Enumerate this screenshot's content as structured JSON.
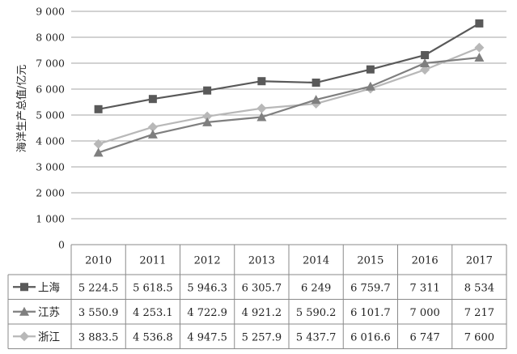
{
  "chart_data": {
    "type": "line",
    "title": "",
    "xlabel": "",
    "ylabel": "海洋生产总值/亿元",
    "ylim": [
      0,
      9000
    ],
    "y_ticks": [
      0,
      1000,
      2000,
      3000,
      4000,
      5000,
      6000,
      7000,
      8000,
      9000
    ],
    "y_tick_labels": [
      "0",
      "1 000",
      "2 000",
      "3 000",
      "4 000",
      "5 000",
      "6 000",
      "7 000",
      "8 000",
      "9 000"
    ],
    "grid": "horizontal",
    "legend": "table-left",
    "categories": [
      "2010",
      "2011",
      "2012",
      "2013",
      "2014",
      "2015",
      "2016",
      "2017"
    ],
    "series": [
      {
        "name": "上海",
        "marker": "square",
        "color": "#595959",
        "values": [
          5224.5,
          5618.5,
          5946.3,
          6305.7,
          6249,
          6759.7,
          7311,
          8534
        ],
        "value_labels": [
          "5 224.5",
          "5 618.5",
          "5 946.3",
          "6 305.7",
          "6 249",
          "6 759.7",
          "7 311",
          "8 534"
        ]
      },
      {
        "name": "江苏",
        "marker": "triangle",
        "color": "#7f7f7f",
        "values": [
          3550.9,
          4253.1,
          4722.9,
          4921.2,
          5590.2,
          6101.7,
          7000,
          7217
        ],
        "value_labels": [
          "3 550.9",
          "4 253.1",
          "4 722.9",
          "4 921.2",
          "5 590.2",
          "6 101.7",
          "7 000",
          "7 217"
        ]
      },
      {
        "name": "浙江",
        "marker": "diamond",
        "color": "#b8b8b8",
        "values": [
          3883.5,
          4536.8,
          4947.5,
          5257.9,
          5437.7,
          6016.6,
          6747,
          7600
        ],
        "value_labels": [
          "3 883.5",
          "4 536.8",
          "4 947.5",
          "5 257.9",
          "5 437.7",
          "6 016.6",
          "6 747",
          "7 600"
        ]
      }
    ]
  }
}
